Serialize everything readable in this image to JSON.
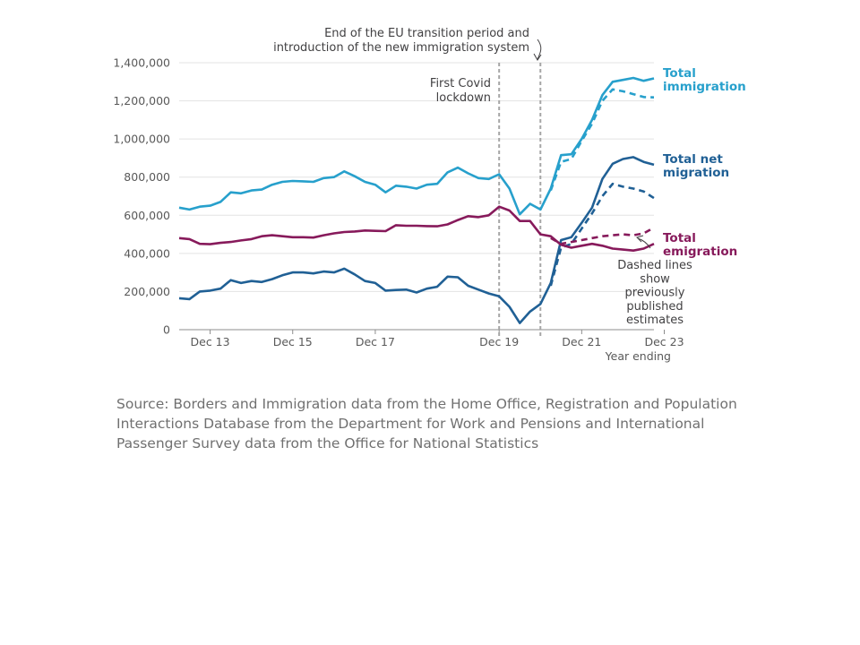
{
  "chart_data": {
    "type": "line",
    "x_tick_labels": [
      "Dec 13",
      "Dec 15",
      "Dec 17",
      "Dec 19",
      "Dec 21",
      "Dec 23"
    ],
    "x_axis_title": "Year ending",
    "y_tick_labels": [
      "0",
      "200,000",
      "400,000",
      "600,000",
      "800,000",
      "1,000,000",
      "1,200,000",
      "1,400,000"
    ],
    "ylim": [
      0,
      1400000
    ],
    "x_range": [
      "Mar 12",
      "Dec 23"
    ],
    "x_tick_quarters": [
      3,
      11,
      19,
      31,
      39,
      47
    ],
    "grid": "horizontal",
    "series": [
      {
        "name": "Total immigration",
        "color": "#27a0cc",
        "style": "solid",
        "values": [
          640000,
          630000,
          645000,
          650000,
          670000,
          720000,
          715000,
          730000,
          735000,
          760000,
          775000,
          780000,
          778000,
          775000,
          795000,
          800000,
          830000,
          805000,
          775000,
          760000,
          720000,
          755000,
          750000,
          740000,
          760000,
          765000,
          825000,
          850000,
          820000,
          795000,
          790000,
          815000,
          740000,
          605000,
          660000,
          630000,
          740000,
          915000,
          920000,
          1000000,
          1100000,
          1230000,
          1300000,
          1310000,
          1320000,
          1305000,
          1318000
        ]
      },
      {
        "name": "Total net migration",
        "color": "#206095",
        "style": "solid",
        "values": [
          165000,
          160000,
          200000,
          205000,
          215000,
          260000,
          245000,
          255000,
          250000,
          265000,
          285000,
          300000,
          300000,
          295000,
          305000,
          300000,
          320000,
          290000,
          255000,
          245000,
          205000,
          208000,
          210000,
          195000,
          215000,
          225000,
          278000,
          275000,
          230000,
          210000,
          190000,
          175000,
          120000,
          35000,
          95000,
          135000,
          245000,
          470000,
          485000,
          560000,
          640000,
          790000,
          870000,
          895000,
          905000,
          880000,
          865000
        ]
      },
      {
        "name": "Total emigration",
        "color": "#871a5b",
        "style": "solid",
        "values": [
          480000,
          475000,
          450000,
          448000,
          455000,
          460000,
          468000,
          475000,
          490000,
          495000,
          490000,
          485000,
          485000,
          483000,
          495000,
          505000,
          512000,
          515000,
          520000,
          518000,
          517000,
          548000,
          545000,
          545000,
          543000,
          542000,
          552000,
          575000,
          595000,
          590000,
          600000,
          645000,
          625000,
          570000,
          570000,
          500000,
          490000,
          445000,
          430000,
          440000,
          450000,
          440000,
          425000,
          420000,
          415000,
          425000,
          450000
        ]
      },
      {
        "name": "Total immigration (previously published)",
        "color": "#27a0cc",
        "style": "dashed",
        "start_index": 36,
        "values": [
          730000,
          880000,
          895000,
          990000,
          1080000,
          1200000,
          1260000,
          1250000,
          1235000,
          1220000,
          1218000
        ]
      },
      {
        "name": "Total net migration (previously published)",
        "color": "#206095",
        "style": "dashed",
        "start_index": 36,
        "values": [
          230000,
          430000,
          450000,
          530000,
          610000,
          700000,
          765000,
          750000,
          740000,
          725000,
          690000
        ]
      },
      {
        "name": "Total emigration (previously published)",
        "color": "#871a5b",
        "style": "dashed",
        "start_index": 36,
        "values": [
          480000,
          450000,
          460000,
          470000,
          480000,
          490000,
          495000,
          500000,
          495000,
          505000,
          535000
        ]
      }
    ],
    "end_labels": [
      {
        "lines": [
          "Total",
          "immigration"
        ],
        "color": "#27a0cc"
      },
      {
        "lines": [
          "Total net",
          "migration"
        ],
        "color": "#206095"
      },
      {
        "lines": [
          "Total",
          "emigration"
        ],
        "color": "#871a5b"
      }
    ],
    "annotations": {
      "eu_transition": [
        "End of the EU transition period and",
        "introduction of the new immigration system"
      ],
      "covid": [
        "First Covid",
        "lockdown"
      ],
      "dashed_note": [
        "Dashed lines",
        "show",
        "previously",
        "published",
        "estimates"
      ]
    },
    "vertical_markers": [
      {
        "quarter_index": 31,
        "note": "covid"
      },
      {
        "quarter_index": 35,
        "note": "eu_transition"
      }
    ]
  },
  "source": "Source: Borders and Immigration data from the Home Office, Registration and Population Interactions Database from the Department for Work and Pensions and International Passenger Survey data from the Office for National Statistics"
}
